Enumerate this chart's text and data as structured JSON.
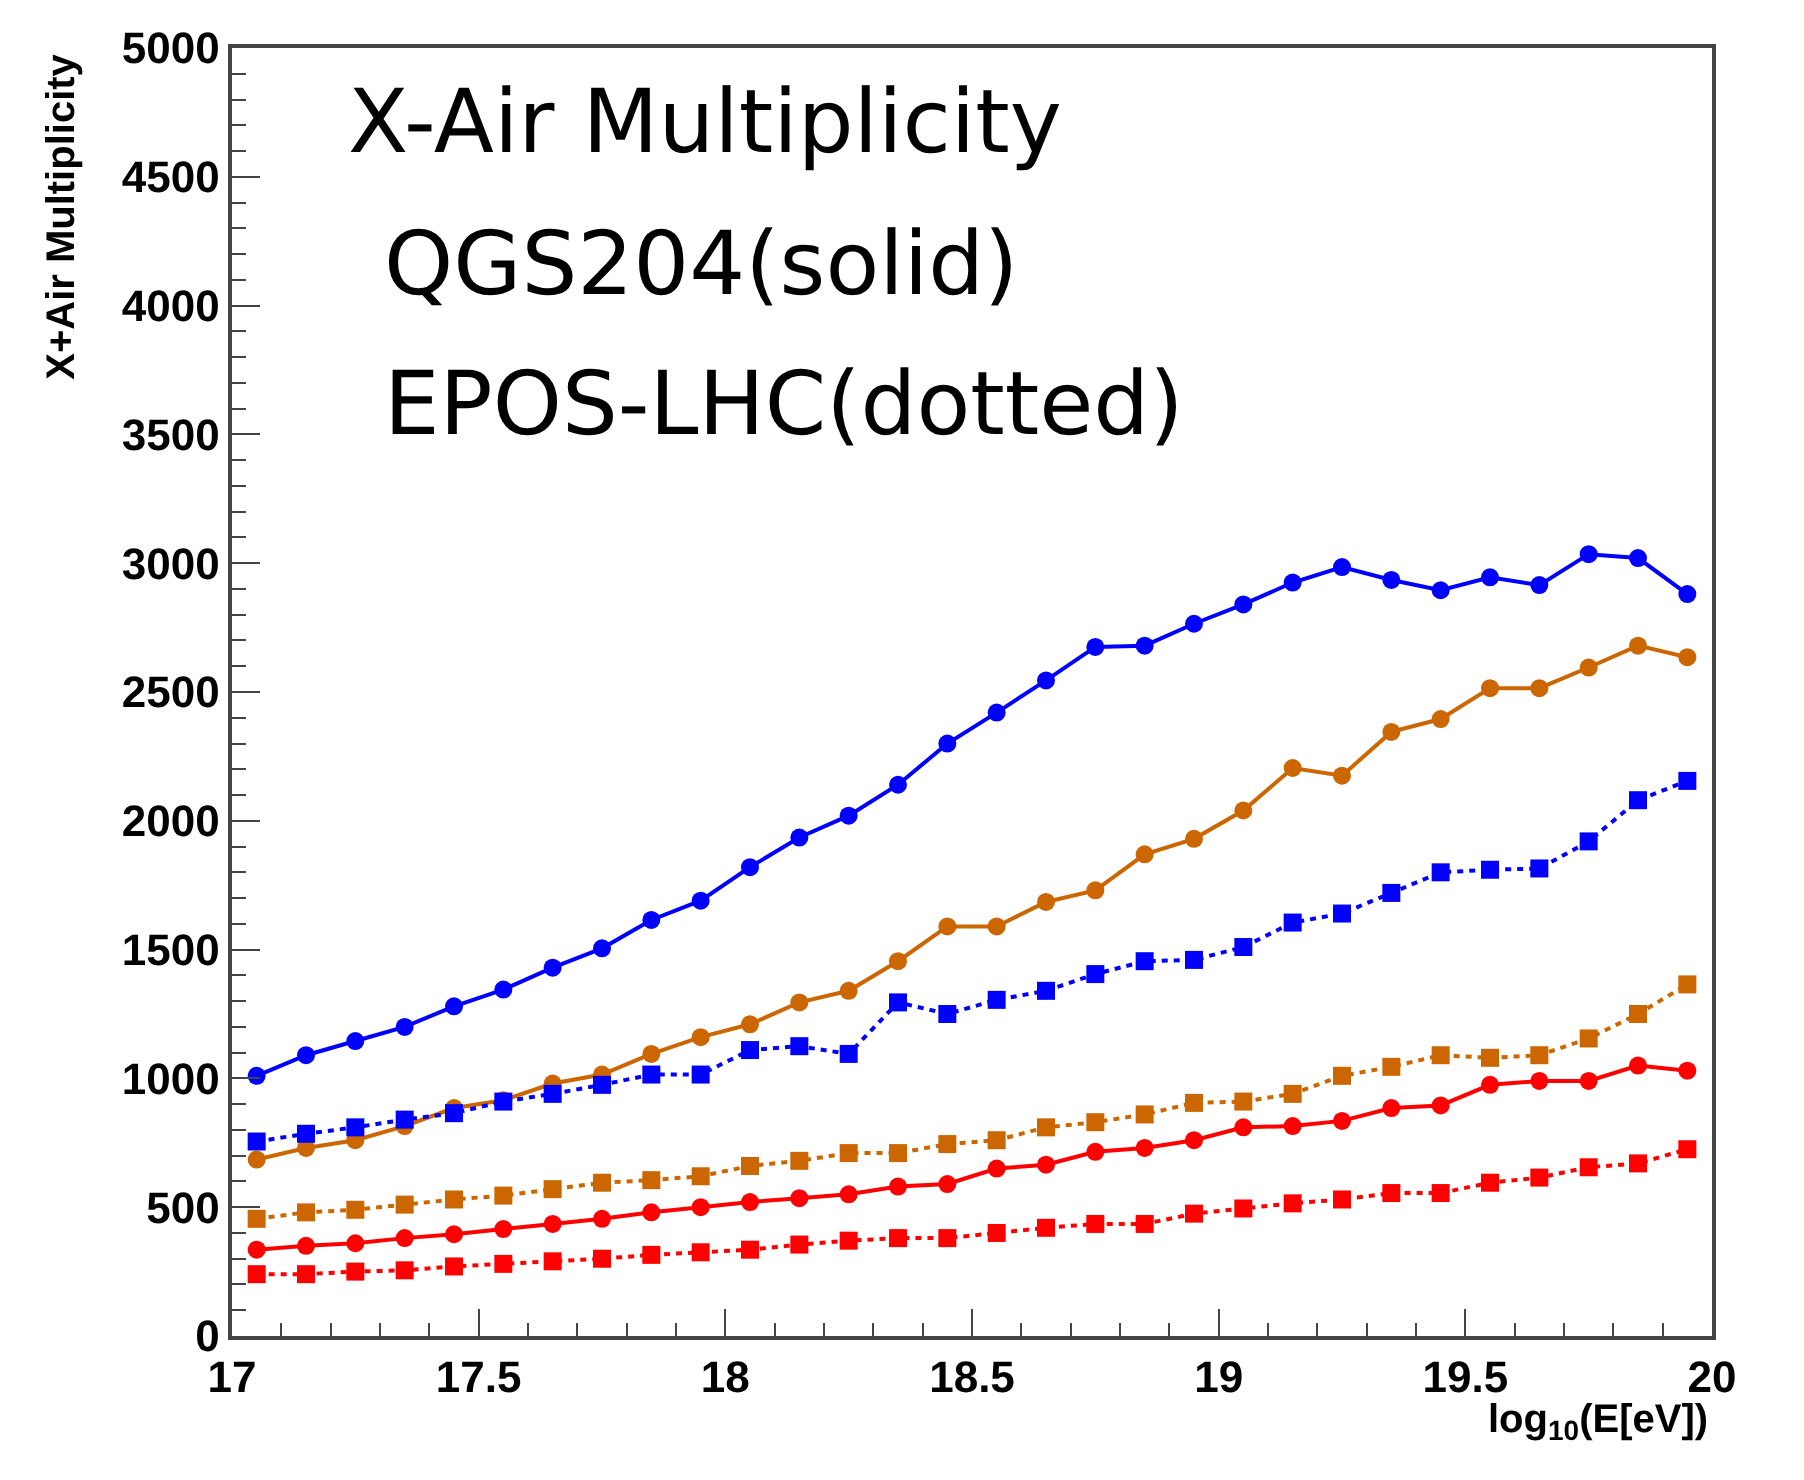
{
  "chart_data": {
    "type": "line",
    "title": "X-Air Multiplicity",
    "annotations": [
      "QGS204(solid)",
      "EPOS-LHC(dotted)"
    ],
    "xlabel": "log$_{10}$(E[eV])",
    "ylabel": "X+Air Multiplicity",
    "x": [
      17.05,
      17.15,
      17.25,
      17.35,
      17.45,
      17.55,
      17.65,
      17.75,
      17.85,
      17.95,
      18.05,
      18.15,
      18.25,
      18.35,
      18.45,
      18.55,
      18.65,
      18.75,
      18.85,
      18.95,
      19.05,
      19.15,
      19.25,
      19.35,
      19.45,
      19.55,
      19.65,
      19.75,
      19.85,
      19.95
    ],
    "series": [
      {
        "color": "#0000ff",
        "marker": "circle",
        "line_style": "solid",
        "values": [
          1010,
          1090,
          1145,
          1200,
          1280,
          1345,
          1430,
          1505,
          1615,
          1690,
          1820,
          1935,
          2020,
          2140,
          2300,
          2420,
          2545,
          2675,
          2680,
          2765,
          2840,
          2925,
          2985,
          2935,
          2895,
          2945,
          2915,
          3035,
          3020,
          2880
        ]
      },
      {
        "color": "#cc6600",
        "marker": "circle",
        "line_style": "solid",
        "values": [
          685,
          730,
          760,
          815,
          885,
          915,
          980,
          1015,
          1095,
          1160,
          1210,
          1295,
          1340,
          1455,
          1590,
          1590,
          1685,
          1730,
          1870,
          1930,
          2040,
          2205,
          2175,
          2345,
          2395,
          2515,
          2515,
          2595,
          2680,
          2635
        ]
      },
      {
        "color": "#ff0000",
        "marker": "circle",
        "line_style": "solid",
        "values": [
          335,
          350,
          360,
          380,
          395,
          415,
          435,
          455,
          480,
          500,
          520,
          535,
          550,
          580,
          590,
          650,
          665,
          715,
          730,
          760,
          810,
          815,
          835,
          885,
          895,
          975,
          990,
          990,
          1050,
          1030
        ]
      },
      {
        "color": "#0000ff",
        "marker": "square",
        "line_style": "dotted",
        "values": [
          755,
          785,
          810,
          840,
          865,
          910,
          940,
          975,
          1015,
          1015,
          1110,
          1125,
          1095,
          1295,
          1250,
          1305,
          1340,
          1405,
          1455,
          1460,
          1510,
          1605,
          1640,
          1720,
          1800,
          1810,
          1815,
          1920,
          2080,
          2155
        ]
      },
      {
        "color": "#cc6600",
        "marker": "square",
        "line_style": "dotted",
        "values": [
          455,
          480,
          490,
          510,
          530,
          545,
          570,
          595,
          605,
          620,
          660,
          680,
          710,
          710,
          745,
          760,
          810,
          830,
          860,
          905,
          910,
          940,
          1010,
          1045,
          1090,
          1080,
          1090,
          1155,
          1250,
          1365
        ]
      },
      {
        "color": "#ff0000",
        "marker": "square",
        "line_style": "dotted",
        "values": [
          240,
          240,
          250,
          255,
          270,
          280,
          290,
          300,
          315,
          325,
          335,
          355,
          370,
          380,
          380,
          400,
          420,
          435,
          435,
          475,
          495,
          515,
          530,
          555,
          555,
          595,
          615,
          655,
          670,
          725
        ]
      }
    ],
    "xlim": [
      17,
      20
    ],
    "xticks": [
      17,
      17.5,
      18,
      18.5,
      19,
      19.5,
      20
    ],
    "ylim": [
      0,
      5000
    ],
    "yticks": [
      0,
      500,
      1000,
      1500,
      2000,
      2500,
      3000,
      3500,
      4000,
      4500,
      5000
    ]
  }
}
